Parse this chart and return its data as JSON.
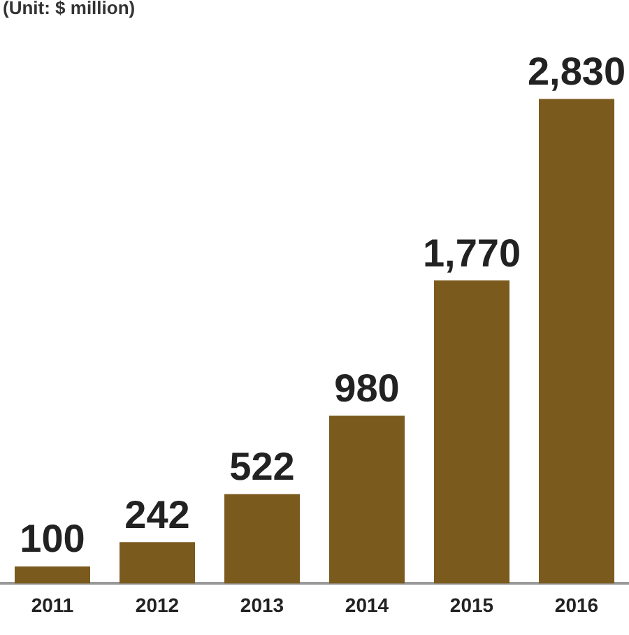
{
  "chart_data": {
    "type": "bar",
    "subtitle": "(Unit: $ million)",
    "categories": [
      "2011",
      "2012",
      "2013",
      "2014",
      "2015",
      "2016"
    ],
    "values": [
      100,
      242,
      522,
      980,
      1770,
      2830
    ],
    "value_labels": [
      "100",
      "242",
      "522",
      "980",
      "1,770",
      "2,830"
    ],
    "color": "#7b5a1e",
    "grid": false,
    "legend": false
  }
}
